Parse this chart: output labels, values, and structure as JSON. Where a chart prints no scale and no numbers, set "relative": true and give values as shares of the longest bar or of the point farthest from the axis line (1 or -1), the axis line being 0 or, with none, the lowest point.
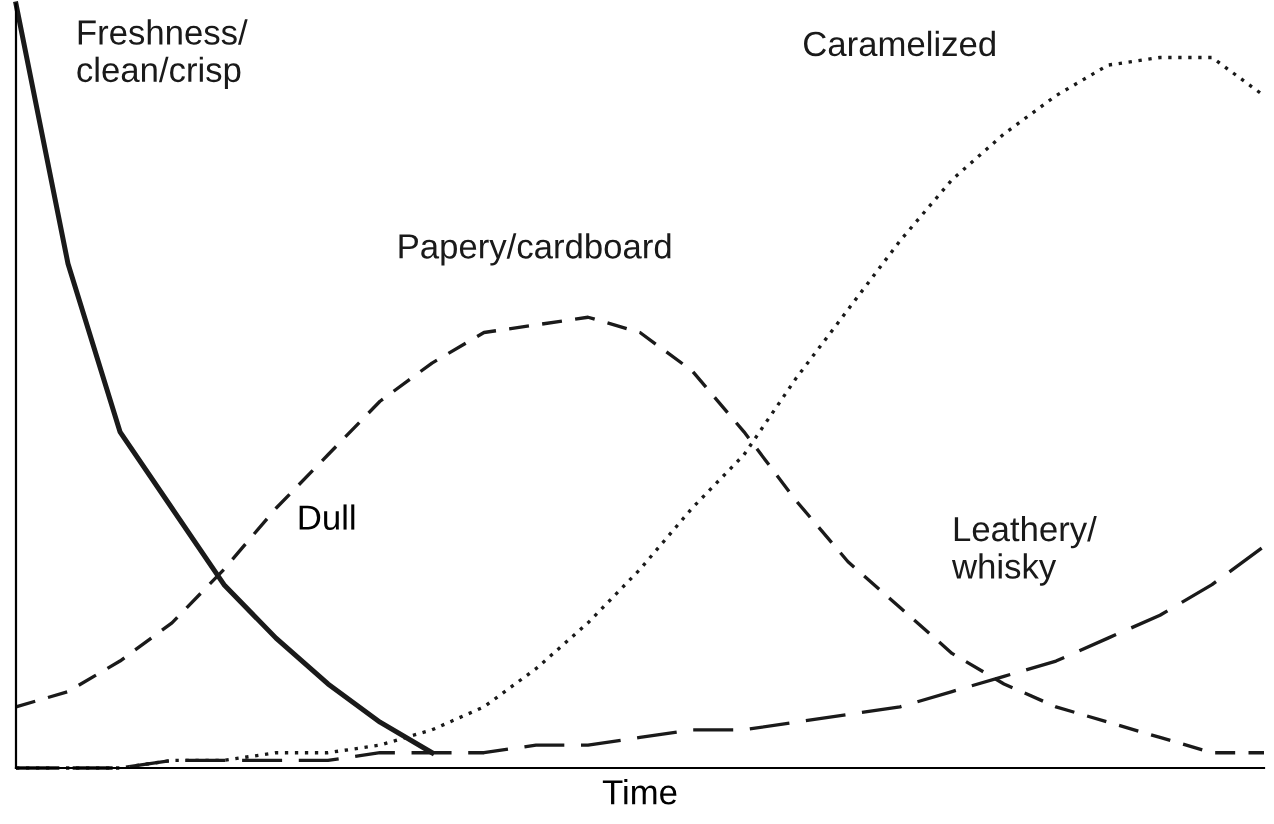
{
  "chart_data": {
    "type": "line",
    "relative": true,
    "xlabel": "Time",
    "annotations": [
      "Dull"
    ],
    "categories": [
      null,
      null,
      null,
      null,
      null,
      null,
      null,
      null,
      null,
      null,
      null,
      null,
      null,
      null,
      null,
      null,
      null,
      null,
      null,
      null,
      null,
      null,
      null,
      null,
      null
    ],
    "series": [
      {
        "name": "Freshness/\nclean/crisp",
        "color": "#1a1a1a",
        "line_style": "solid",
        "values": [
          1.0,
          0.66,
          0.44,
          0.34,
          0.24,
          0.17,
          0.11,
          0.06,
          0.02,
          null,
          null,
          null,
          null,
          null,
          null,
          null,
          null,
          null,
          null,
          null,
          null,
          null,
          null,
          null,
          null
        ]
      },
      {
        "name": "Papery/cardboard",
        "color": "#1a1a1a",
        "line_style": "dashed",
        "values": [
          0.08,
          0.1,
          0.14,
          0.19,
          0.26,
          0.34,
          0.41,
          0.48,
          0.53,
          0.57,
          0.58,
          0.59,
          0.57,
          0.52,
          0.44,
          0.35,
          0.27,
          0.21,
          0.15,
          0.11,
          0.08,
          0.06,
          0.04,
          0.02,
          0.02
        ]
      },
      {
        "name": "Caramelized",
        "color": "#1a1a1a",
        "line_style": "dotted",
        "values": [
          0.0,
          0.0,
          0.0,
          0.01,
          0.01,
          0.02,
          0.02,
          0.03,
          0.05,
          0.08,
          0.13,
          0.19,
          0.26,
          0.34,
          0.41,
          0.51,
          0.6,
          0.69,
          0.77,
          0.83,
          0.88,
          0.92,
          0.93,
          0.93,
          0.88
        ]
      },
      {
        "name": "Leathery/\nwhisky",
        "color": "#1a1a1a",
        "line_style": "dashed",
        "values": [
          0.0,
          0.0,
          0.0,
          0.01,
          0.01,
          0.01,
          0.01,
          0.02,
          0.02,
          0.02,
          0.03,
          0.03,
          0.04,
          0.05,
          0.05,
          0.06,
          0.07,
          0.08,
          0.1,
          0.12,
          0.14,
          0.17,
          0.2,
          0.24,
          0.29
        ]
      }
    ]
  }
}
